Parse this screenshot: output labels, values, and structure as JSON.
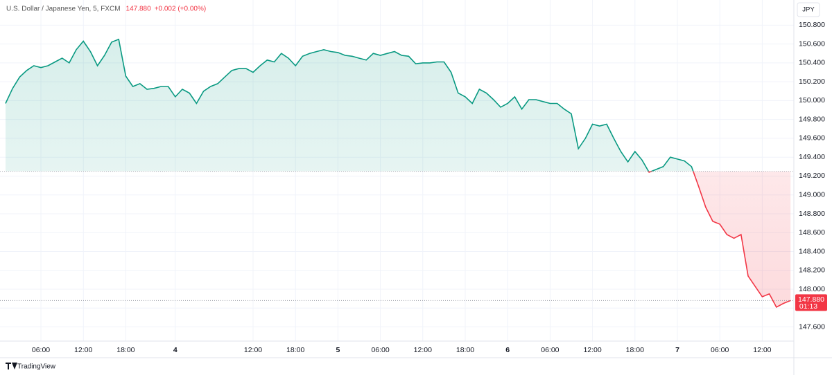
{
  "chart_data": {
    "type": "line",
    "title": "U.S. Dollar / Japanese Yen, 5, FXCM",
    "header_price": "147.880",
    "header_change": "+0.002 (+0.00%)",
    "currency": "JPY",
    "brand": "TradingView",
    "last_price_label": "147.880",
    "countdown": "01:13",
    "categories": [
      null,
      null,
      null,
      null,
      null,
      "06:00",
      null,
      null,
      null,
      null,
      null,
      "12:00",
      null,
      null,
      null,
      null,
      null,
      "18:00",
      null,
      null,
      null,
      null,
      null,
      null,
      "4",
      null,
      null,
      null,
      null,
      null,
      null,
      null,
      null,
      null,
      null,
      "12:00",
      null,
      null,
      null,
      null,
      null,
      "18:00",
      null,
      null,
      null,
      null,
      null,
      "5",
      null,
      null,
      null,
      null,
      null,
      "06:00",
      null,
      null,
      null,
      null,
      null,
      "12:00",
      null,
      null,
      null,
      null,
      null,
      "18:00",
      null,
      null,
      null,
      null,
      null,
      "6",
      null,
      null,
      null,
      null,
      null,
      "06:00",
      null,
      null,
      null,
      null,
      null,
      "12:00",
      null,
      null,
      null,
      null,
      null,
      "18:00",
      null,
      null,
      null,
      null,
      null,
      "7",
      null,
      null,
      null,
      null,
      null,
      "06:00",
      null,
      null,
      null,
      null,
      null,
      "12:00",
      null,
      null,
      null,
      null
    ],
    "series": [
      {
        "name": "USDJPY",
        "color": "#089981",
        "color_below": "#f23645",
        "values": [
          149.97,
          150.13,
          150.25,
          150.32,
          150.37,
          150.35,
          150.37,
          150.41,
          150.45,
          150.4,
          150.54,
          150.63,
          150.52,
          150.37,
          150.48,
          150.62,
          150.65,
          150.26,
          150.15,
          150.18,
          150.12,
          150.13,
          150.15,
          150.15,
          150.04,
          150.12,
          150.08,
          149.97,
          150.1,
          150.15,
          150.18,
          150.25,
          150.32,
          150.34,
          150.34,
          150.3,
          150.37,
          150.43,
          150.41,
          150.5,
          150.45,
          150.37,
          150.47,
          150.5,
          150.52,
          150.54,
          150.52,
          150.51,
          150.48,
          150.47,
          150.45,
          150.43,
          150.5,
          150.48,
          150.5,
          150.52,
          150.48,
          150.47,
          150.39,
          150.4,
          150.4,
          150.41,
          150.41,
          150.3,
          150.08,
          150.04,
          149.97,
          150.12,
          150.08,
          150.01,
          149.93,
          149.97,
          150.04,
          149.91,
          150.01,
          150.01,
          149.99,
          149.97,
          149.97,
          149.91,
          149.86,
          149.49,
          149.6,
          149.75,
          149.73,
          149.75,
          149.6,
          149.46,
          149.35,
          149.46,
          149.37,
          149.24,
          149.27,
          149.3,
          149.4,
          149.38,
          149.36,
          149.3,
          149.09,
          148.87,
          148.72,
          148.69,
          148.58,
          148.54,
          148.58,
          148.14,
          148.03,
          147.92,
          147.95,
          147.81,
          147.85,
          147.88
        ]
      }
    ],
    "baseline": 149.25,
    "ylim": [
      147.45,
      151.03
    ],
    "yticks": [
      {
        "value": 147.6,
        "label": "147.600"
      },
      {
        "value": 147.8,
        "label": "147.800"
      },
      {
        "value": 148.0,
        "label": "148.000"
      },
      {
        "value": 148.2,
        "label": "148.200"
      },
      {
        "value": 148.4,
        "label": "148.400"
      },
      {
        "value": 148.6,
        "label": "148.600"
      },
      {
        "value": 148.8,
        "label": "148.800"
      },
      {
        "value": 149.0,
        "label": "149.000"
      },
      {
        "value": 149.2,
        "label": "149.200"
      },
      {
        "value": 149.4,
        "label": "149.400"
      },
      {
        "value": 149.6,
        "label": "149.600"
      },
      {
        "value": 149.8,
        "label": "149.800"
      },
      {
        "value": 150.0,
        "label": "150.000"
      },
      {
        "value": 150.2,
        "label": "150.200"
      },
      {
        "value": 150.4,
        "label": "150.400"
      },
      {
        "value": 150.6,
        "label": "150.600"
      },
      {
        "value": 150.8,
        "label": "150.800"
      }
    ],
    "grid": true
  }
}
